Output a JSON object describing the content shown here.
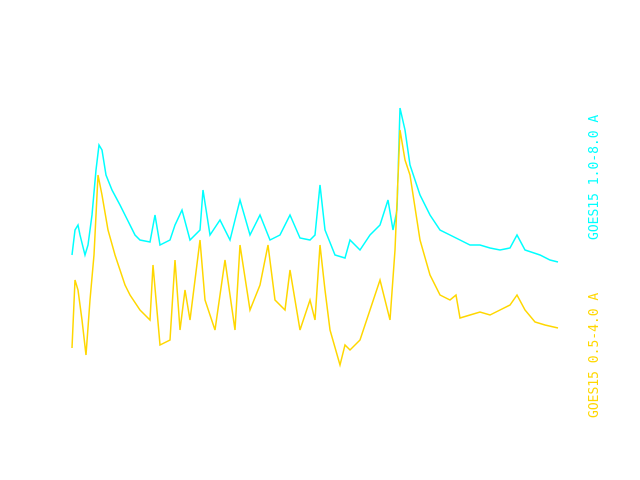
{
  "chart_data": {
    "type": "line",
    "title": "",
    "xlabel": "",
    "ylabel": "",
    "grid": false,
    "legend_placement": "right, vertical",
    "series": [
      {
        "name": "GOES15 1.0-8.0 A",
        "color": "#00ffff",
        "points": [
          [
            0,
            145
          ],
          [
            3,
            170
          ],
          [
            6,
            175
          ],
          [
            8,
            165
          ],
          [
            13,
            145
          ],
          [
            16,
            155
          ],
          [
            20,
            185
          ],
          [
            24,
            230
          ],
          [
            27,
            255
          ],
          [
            30,
            250
          ],
          [
            34,
            225
          ],
          [
            40,
            210
          ],
          [
            48,
            195
          ],
          [
            58,
            175
          ],
          [
            63,
            165
          ],
          [
            68,
            160
          ],
          [
            78,
            158
          ],
          [
            83,
            185
          ],
          [
            88,
            155
          ],
          [
            98,
            160
          ],
          [
            103,
            175
          ],
          [
            110,
            190
          ],
          [
            118,
            160
          ],
          [
            128,
            170
          ],
          [
            131,
            210
          ],
          [
            138,
            165
          ],
          [
            148,
            180
          ],
          [
            158,
            160
          ],
          [
            168,
            200
          ],
          [
            178,
            165
          ],
          [
            188,
            185
          ],
          [
            198,
            160
          ],
          [
            208,
            165
          ],
          [
            218,
            185
          ],
          [
            228,
            162
          ],
          [
            238,
            160
          ],
          [
            243,
            165
          ],
          [
            248,
            215
          ],
          [
            253,
            170
          ],
          [
            263,
            145
          ],
          [
            273,
            142
          ],
          [
            278,
            160
          ],
          [
            288,
            150
          ],
          [
            298,
            165
          ],
          [
            308,
            175
          ],
          [
            316,
            200
          ],
          [
            321,
            170
          ],
          [
            325,
            190
          ],
          [
            328,
            292
          ],
          [
            333,
            270
          ],
          [
            338,
            235
          ],
          [
            348,
            205
          ],
          [
            358,
            185
          ],
          [
            368,
            170
          ],
          [
            378,
            165
          ],
          [
            388,
            160
          ],
          [
            398,
            155
          ],
          [
            408,
            155
          ],
          [
            418,
            152
          ],
          [
            428,
            150
          ],
          [
            438,
            152
          ],
          [
            445,
            165
          ],
          [
            453,
            150
          ],
          [
            468,
            145
          ],
          [
            478,
            140
          ],
          [
            486,
            138
          ]
        ]
      },
      {
        "name": "GOES15 0.5-4.0 A",
        "color": "#ffd700",
        "points": [
          [
            0,
            52
          ],
          [
            3,
            120
          ],
          [
            6,
            110
          ],
          [
            10,
            80
          ],
          [
            14,
            45
          ],
          [
            18,
            100
          ],
          [
            22,
            145
          ],
          [
            26,
            225
          ],
          [
            30,
            205
          ],
          [
            36,
            170
          ],
          [
            43,
            145
          ],
          [
            53,
            115
          ],
          [
            58,
            105
          ],
          [
            68,
            90
          ],
          [
            78,
            80
          ],
          [
            81,
            135
          ],
          [
            88,
            55
          ],
          [
            98,
            60
          ],
          [
            103,
            140
          ],
          [
            108,
            70
          ],
          [
            113,
            110
          ],
          [
            118,
            80
          ],
          [
            128,
            160
          ],
          [
            133,
            100
          ],
          [
            143,
            70
          ],
          [
            153,
            140
          ],
          [
            163,
            70
          ],
          [
            168,
            155
          ],
          [
            178,
            90
          ],
          [
            188,
            115
          ],
          [
            196,
            155
          ],
          [
            203,
            100
          ],
          [
            213,
            90
          ],
          [
            218,
            130
          ],
          [
            228,
            70
          ],
          [
            238,
            100
          ],
          [
            243,
            80
          ],
          [
            248,
            155
          ],
          [
            253,
            110
          ],
          [
            258,
            70
          ],
          [
            268,
            35
          ],
          [
            273,
            55
          ],
          [
            278,
            50
          ],
          [
            288,
            60
          ],
          [
            298,
            90
          ],
          [
            308,
            120
          ],
          [
            318,
            80
          ],
          [
            323,
            150
          ],
          [
            328,
            270
          ],
          [
            333,
            240
          ],
          [
            338,
            225
          ],
          [
            348,
            160
          ],
          [
            358,
            125
          ],
          [
            368,
            105
          ],
          [
            378,
            100
          ],
          [
            384,
            105
          ],
          [
            388,
            82
          ],
          [
            398,
            85
          ],
          [
            408,
            88
          ],
          [
            418,
            85
          ],
          [
            428,
            90
          ],
          [
            438,
            95
          ],
          [
            445,
            105
          ],
          [
            453,
            90
          ],
          [
            463,
            78
          ],
          [
            473,
            75
          ],
          [
            486,
            72
          ]
        ]
      }
    ]
  }
}
